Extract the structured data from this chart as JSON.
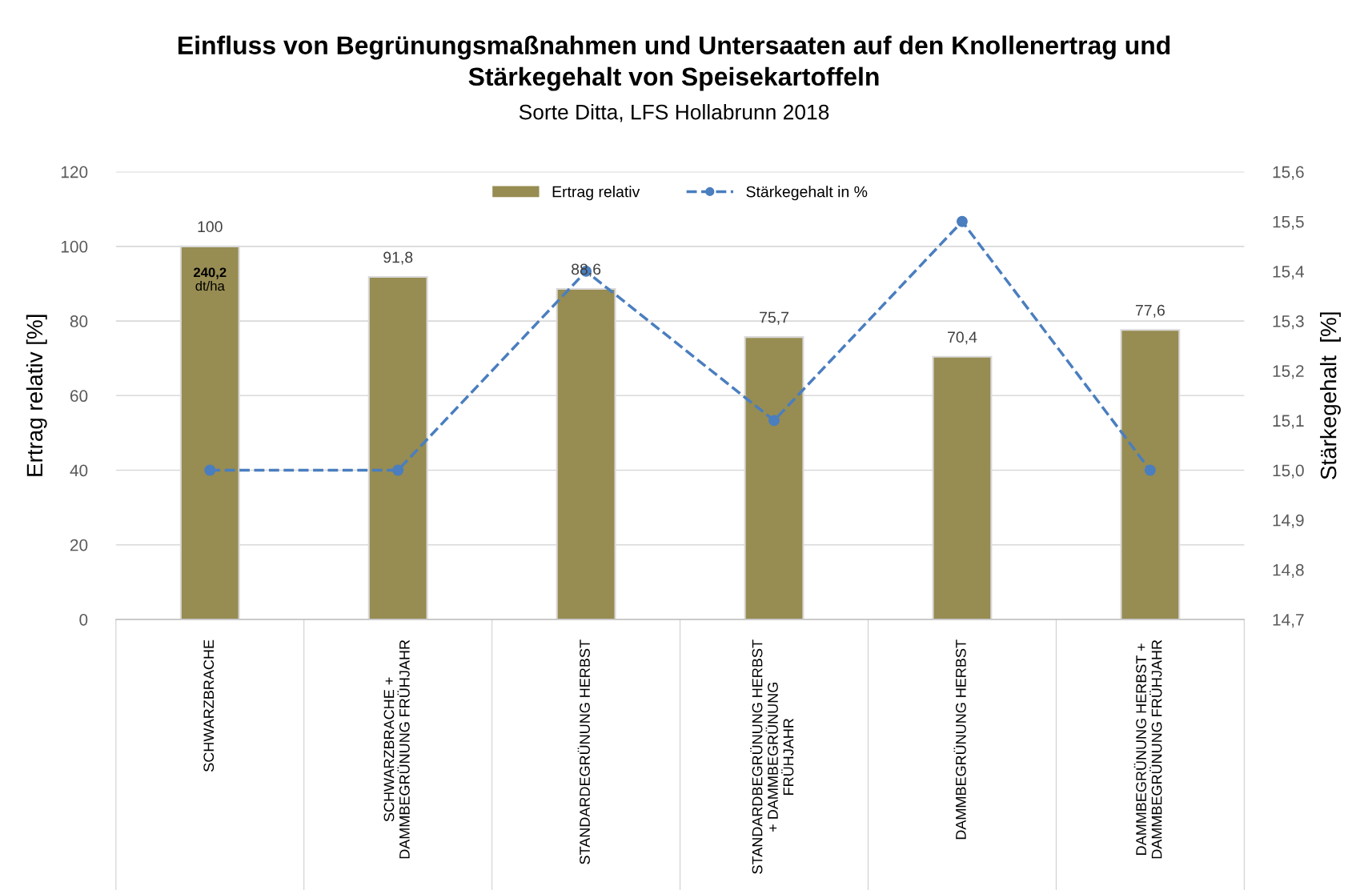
{
  "chart_data": {
    "type": "bar",
    "title": "Einfluss von Begrünungsmaßnahmen und Untersaaten auf den Knollenertrag und\nStärkegehalt von Speisekartoffeln",
    "subtitle": "Sorte Ditta, LFS Hollabrunn 2018",
    "ylabel": "Ertrag relativ [%]",
    "y2label": "Stärkegehalt  [%]",
    "categories": [
      "SCHWARZBRACHE",
      "SCHWARZBRACHE +\nDAMMBEGRÜNUNG FRÜHJAHR",
      "STANDARDEGRÜNUNG HERBST",
      "STANDARDBEGRÜNUNG HERBST\n+ DAMMBEGRÜNUNG\nFRÜHJAHR",
      "DAMMBEGRÜNUNG HERBST",
      "DAMMBEGRÜNUNG HERBST +\nDAMMBEGRÜNUNG FRÜHJAHR"
    ],
    "series": [
      {
        "name": "Ertrag relativ",
        "color": "#978c52",
        "values": [
          100,
          91.8,
          88.6,
          75.7,
          70.4,
          77.6
        ],
        "value_labels": [
          "100",
          "91,8",
          "88,6",
          "75,7",
          "70,4",
          "77,6"
        ]
      },
      {
        "name": "Stärkegehalt in %",
        "type": "line",
        "axis": "y2",
        "color": "#4a7ebf",
        "marker": "circle",
        "line_style": "dashed",
        "values": [
          15.0,
          15.0,
          15.4,
          15.1,
          15.5,
          15.0
        ]
      }
    ],
    "ylim": [
      0,
      120
    ],
    "yticks": [
      0,
      20,
      40,
      60,
      80,
      100,
      120
    ],
    "y2lim": [
      14.7,
      15.6
    ],
    "y2ticks": [
      {
        "value": 14.7,
        "label": "14,7"
      },
      {
        "value": 14.8,
        "label": "14,8"
      },
      {
        "value": 14.9,
        "label": "14,9"
      },
      {
        "value": 15.0,
        "label": "15,0"
      },
      {
        "value": 15.1,
        "label": "15,1"
      },
      {
        "value": 15.2,
        "label": "15,2"
      },
      {
        "value": 15.3,
        "label": "15,3"
      },
      {
        "value": 15.4,
        "label": "15,4"
      },
      {
        "value": 15.5,
        "label": "15,5"
      },
      {
        "value": 15.6,
        "label": "15,6"
      }
    ],
    "annotations": [
      {
        "text": "240,2\ndt/ha",
        "x": "SCHWARZBRACHE",
        "y": 100
      }
    ],
    "grid": "y",
    "legend": "top"
  }
}
